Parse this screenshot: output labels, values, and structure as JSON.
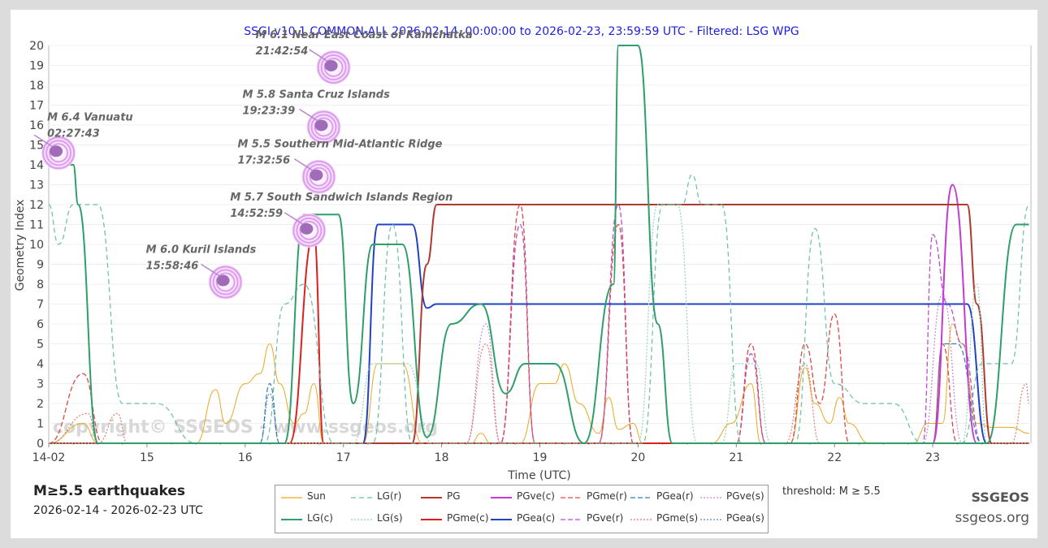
{
  "chart_data": {
    "type": "line",
    "title": "SSGI v10.1 COMMON-ALL 2026-02-14, 00:00:00 to 2026-02-23, 23:59:59 UTC - Filtered: LSG WPG",
    "xlabel": "Time (UTC)",
    "ylabel": "Geometry Index",
    "xlim": [
      14,
      24
    ],
    "ylim": [
      0,
      20
    ],
    "x_tick_labels": [
      "14-02",
      "15",
      "16",
      "17",
      "18",
      "19",
      "20",
      "21",
      "22",
      "23"
    ],
    "y_ticks": [
      0,
      1,
      2,
      3,
      4,
      5,
      6,
      7,
      8,
      9,
      10,
      11,
      12,
      13,
      14,
      15,
      16,
      17,
      18,
      19,
      20
    ],
    "watermark": "copyright© SSGEOS - www.ssgeos.org",
    "series": [
      {
        "name": "LG(c)",
        "color": "#2e9e6b",
        "dash": "solid",
        "width": 2,
        "points": [
          [
            14.0,
            14
          ],
          [
            14.25,
            14
          ],
          [
            14.3,
            12
          ],
          [
            14.5,
            0
          ],
          [
            15.5,
            0
          ],
          [
            16.4,
            0
          ],
          [
            16.6,
            11.5
          ],
          [
            16.95,
            11.5
          ],
          [
            17.1,
            2
          ],
          [
            17.3,
            10
          ],
          [
            17.6,
            10
          ],
          [
            17.85,
            0.3
          ],
          [
            18.1,
            6
          ],
          [
            18.4,
            7
          ],
          [
            18.65,
            2.5
          ],
          [
            18.85,
            4
          ],
          [
            19.15,
            4
          ],
          [
            19.45,
            0
          ],
          [
            19.75,
            8
          ],
          [
            19.8,
            20
          ],
          [
            20.0,
            20
          ],
          [
            20.2,
            6
          ],
          [
            20.35,
            0
          ],
          [
            23.55,
            0
          ],
          [
            23.85,
            11
          ],
          [
            23.98,
            11
          ]
        ]
      },
      {
        "name": "LG(r)",
        "color": "#69bfa0",
        "dash": "6,4",
        "width": 1.2,
        "points": [
          [
            14.0,
            12
          ],
          [
            14.1,
            10
          ],
          [
            14.25,
            12
          ],
          [
            14.5,
            12
          ],
          [
            14.75,
            2
          ],
          [
            15.1,
            2
          ],
          [
            15.5,
            0
          ],
          [
            16.2,
            0
          ],
          [
            16.4,
            7
          ],
          [
            16.6,
            8
          ],
          [
            16.9,
            0
          ],
          [
            17.3,
            0
          ],
          [
            17.5,
            11
          ],
          [
            17.7,
            0
          ],
          [
            20.05,
            0
          ],
          [
            20.25,
            12
          ],
          [
            20.45,
            12
          ],
          [
            20.55,
            13.5
          ],
          [
            20.65,
            12
          ],
          [
            20.85,
            12
          ],
          [
            21.05,
            0
          ],
          [
            21.6,
            0
          ],
          [
            21.8,
            10.8
          ],
          [
            22.0,
            3
          ],
          [
            22.3,
            2
          ],
          [
            22.6,
            2
          ],
          [
            22.9,
            0
          ],
          [
            23.3,
            0
          ],
          [
            23.5,
            4
          ],
          [
            23.8,
            4
          ],
          [
            23.98,
            12
          ]
        ]
      },
      {
        "name": "LG(s)",
        "color": "#94d0b5",
        "dash": "2,2",
        "width": 1.2,
        "points": [
          [
            14.0,
            0
          ],
          [
            17.1,
            0
          ],
          [
            17.3,
            4
          ],
          [
            17.65,
            4
          ],
          [
            17.9,
            0
          ],
          [
            20.0,
            0
          ],
          [
            20.2,
            12
          ],
          [
            20.4,
            12
          ],
          [
            20.6,
            0
          ],
          [
            20.85,
            0
          ],
          [
            21.0,
            4
          ],
          [
            21.2,
            4
          ],
          [
            21.35,
            0
          ],
          [
            23.3,
            0
          ],
          [
            23.45,
            8
          ],
          [
            23.55,
            0
          ],
          [
            23.98,
            0
          ]
        ]
      },
      {
        "name": "PG",
        "color": "#b03a2e",
        "dash": "solid",
        "width": 2,
        "points": [
          [
            14.0,
            0
          ],
          [
            17.7,
            0
          ],
          [
            17.85,
            9
          ],
          [
            17.95,
            12
          ],
          [
            23.35,
            12
          ],
          [
            23.45,
            7
          ],
          [
            23.6,
            0
          ],
          [
            23.98,
            0
          ]
        ]
      },
      {
        "name": "PGme(c)",
        "color": "#dd1f1f",
        "dash": "solid",
        "width": 2,
        "points": [
          [
            14.0,
            0
          ],
          [
            16.45,
            0
          ],
          [
            16.7,
            10.5
          ],
          [
            16.8,
            0
          ],
          [
            23.98,
            0
          ]
        ]
      },
      {
        "name": "PGve(c)",
        "color": "#c43ad6",
        "dash": "solid",
        "width": 2,
        "points": [
          [
            14.0,
            0
          ],
          [
            23.0,
            0
          ],
          [
            23.2,
            13
          ],
          [
            23.45,
            0
          ],
          [
            23.98,
            0
          ]
        ]
      },
      {
        "name": "PGea(c)",
        "color": "#2142c7",
        "dash": "solid",
        "width": 2,
        "points": [
          [
            14.0,
            0
          ],
          [
            17.2,
            0
          ],
          [
            17.35,
            11
          ],
          [
            17.7,
            11
          ],
          [
            17.85,
            6.8
          ],
          [
            17.95,
            7
          ],
          [
            23.35,
            7
          ],
          [
            23.55,
            0
          ],
          [
            23.98,
            0
          ]
        ]
      },
      {
        "name": "PGme(r)",
        "color": "#d94a4a",
        "dash": "6,3",
        "width": 1.3,
        "points": [
          [
            14.0,
            0
          ],
          [
            14.35,
            3.5
          ],
          [
            14.55,
            0
          ],
          [
            18.6,
            0
          ],
          [
            18.8,
            12
          ],
          [
            18.95,
            0
          ],
          [
            19.6,
            0
          ],
          [
            19.8,
            11
          ],
          [
            19.95,
            0
          ],
          [
            21.0,
            0
          ],
          [
            21.15,
            5
          ],
          [
            21.3,
            0
          ],
          [
            21.55,
            0
          ],
          [
            21.7,
            5
          ],
          [
            21.85,
            2
          ],
          [
            22.0,
            6.5
          ],
          [
            22.15,
            0
          ],
          [
            23.0,
            0
          ],
          [
            23.1,
            5
          ],
          [
            23.25,
            0
          ],
          [
            23.98,
            0
          ]
        ]
      },
      {
        "name": "PGea(r)",
        "color": "#2f7db5",
        "dash": "6,3",
        "width": 1.2,
        "points": [
          [
            14.0,
            0
          ],
          [
            16.15,
            0
          ],
          [
            16.25,
            3
          ],
          [
            16.35,
            0
          ],
          [
            23.0,
            0
          ],
          [
            23.1,
            5
          ],
          [
            23.25,
            5
          ],
          [
            23.5,
            0
          ],
          [
            23.98,
            0
          ]
        ]
      },
      {
        "name": "PGve(r)",
        "color": "#b84fcf",
        "dash": "6,3",
        "width": 1.3,
        "points": [
          [
            14.0,
            0
          ],
          [
            18.6,
            0
          ],
          [
            18.8,
            11
          ],
          [
            18.95,
            0
          ],
          [
            19.6,
            0
          ],
          [
            19.8,
            12
          ],
          [
            19.95,
            0
          ],
          [
            21.0,
            0
          ],
          [
            21.15,
            4.5
          ],
          [
            21.3,
            0
          ],
          [
            22.9,
            0
          ],
          [
            23.0,
            10.5
          ],
          [
            23.15,
            7
          ],
          [
            23.3,
            5
          ],
          [
            23.5,
            0
          ],
          [
            23.98,
            0
          ]
        ]
      },
      {
        "name": "PGme(s)",
        "color": "#e07b6e",
        "dash": "2,2",
        "width": 1.2,
        "points": [
          [
            14.0,
            0
          ],
          [
            14.4,
            1.5
          ],
          [
            14.5,
            0
          ],
          [
            14.7,
            1.5
          ],
          [
            14.8,
            0
          ],
          [
            18.25,
            0
          ],
          [
            18.45,
            5
          ],
          [
            18.6,
            0
          ],
          [
            21.5,
            0
          ],
          [
            21.7,
            4
          ],
          [
            21.85,
            0
          ],
          [
            23.8,
            0
          ],
          [
            23.95,
            3
          ],
          [
            23.98,
            2
          ]
        ]
      },
      {
        "name": "PGve(s)",
        "color": "#c88ad6",
        "dash": "2,2",
        "width": 1.2,
        "points": [
          [
            14.0,
            0
          ],
          [
            18.25,
            0
          ],
          [
            18.45,
            6
          ],
          [
            18.6,
            0
          ],
          [
            22.9,
            0
          ],
          [
            23.1,
            7.5
          ],
          [
            23.3,
            0
          ],
          [
            23.98,
            0
          ]
        ]
      },
      {
        "name": "PGea(s)",
        "color": "#5f84c4",
        "dash": "2,2",
        "width": 1.2,
        "points": [
          [
            14.0,
            0
          ],
          [
            16.15,
            0
          ],
          [
            16.25,
            2.5
          ],
          [
            16.35,
            0
          ],
          [
            23.98,
            0
          ]
        ]
      },
      {
        "name": "Sun",
        "color": "#e8a820",
        "dash": "solid",
        "width": 1,
        "points": [
          [
            14.0,
            0
          ],
          [
            14.35,
            1
          ],
          [
            14.5,
            0
          ],
          [
            15.5,
            0
          ],
          [
            15.7,
            2.7
          ],
          [
            15.8,
            1
          ],
          [
            16.0,
            3
          ],
          [
            16.15,
            3.5
          ],
          [
            16.25,
            5
          ],
          [
            16.35,
            3
          ],
          [
            16.5,
            1
          ],
          [
            16.6,
            1.5
          ],
          [
            16.7,
            3
          ],
          [
            16.8,
            0
          ],
          [
            17.2,
            0
          ],
          [
            17.35,
            4
          ],
          [
            17.6,
            4
          ],
          [
            17.8,
            0
          ],
          [
            18.3,
            0
          ],
          [
            18.4,
            0.5
          ],
          [
            18.5,
            0
          ],
          [
            18.8,
            0
          ],
          [
            19.0,
            3
          ],
          [
            19.15,
            3
          ],
          [
            19.25,
            4
          ],
          [
            19.4,
            2
          ],
          [
            19.6,
            0.5
          ],
          [
            19.7,
            2.3
          ],
          [
            19.8,
            0.7
          ],
          [
            19.95,
            1
          ],
          [
            20.05,
            0
          ],
          [
            20.75,
            0
          ],
          [
            20.95,
            1
          ],
          [
            21.15,
            3
          ],
          [
            21.25,
            0
          ],
          [
            21.55,
            0
          ],
          [
            21.7,
            3.8
          ],
          [
            21.8,
            2
          ],
          [
            21.95,
            1
          ],
          [
            22.05,
            2.3
          ],
          [
            22.15,
            1
          ],
          [
            22.35,
            0
          ],
          [
            22.8,
            0
          ],
          [
            22.95,
            1
          ],
          [
            23.1,
            1
          ],
          [
            23.2,
            6
          ],
          [
            23.3,
            5
          ],
          [
            23.45,
            1
          ],
          [
            23.6,
            0.8
          ],
          [
            23.8,
            0.8
          ],
          [
            23.98,
            0.5
          ]
        ]
      }
    ],
    "annotations": [
      {
        "title": "M 6.4 Vanuatu",
        "time": "02:27:43",
        "x": 14.1,
        "y": 14.6
      },
      {
        "title": "M 6.1 Near East Coast of Kamchatka",
        "time": "21:42:54",
        "x": 16.9,
        "y": 18.9
      },
      {
        "title": "M 5.8 Santa Cruz Islands",
        "time": "19:23:39",
        "x": 16.8,
        "y": 15.9
      },
      {
        "title": "M 5.5 Southern Mid-Atlantic Ridge",
        "time": "17:32:56",
        "x": 16.75,
        "y": 13.4
      },
      {
        "title": "M 5.7 South Sandwich Islands Region",
        "time": "14:52:59",
        "x": 16.65,
        "y": 10.7
      },
      {
        "title": "M 6.0 Kuril Islands",
        "time": "15:58:46",
        "x": 15.8,
        "y": 8.1
      }
    ]
  },
  "footer": {
    "heading": "M≥5.5 earthquakes",
    "range": "2026-02-14 - 2026-02-23 UTC",
    "threshold": "threshold: M ≥ 5.5",
    "brand": "SSGEOS",
    "site": "ssgeos.org"
  },
  "legend_order": [
    "Sun",
    "LG(r)",
    "PG",
    "PGve(c)",
    "PGme(r)",
    "PGea(r)",
    "PGve(s)",
    "LG(c)",
    "LG(s)",
    "PGme(c)",
    "PGea(c)",
    "PGve(r)",
    "PGme(s)",
    "PGea(s)"
  ]
}
